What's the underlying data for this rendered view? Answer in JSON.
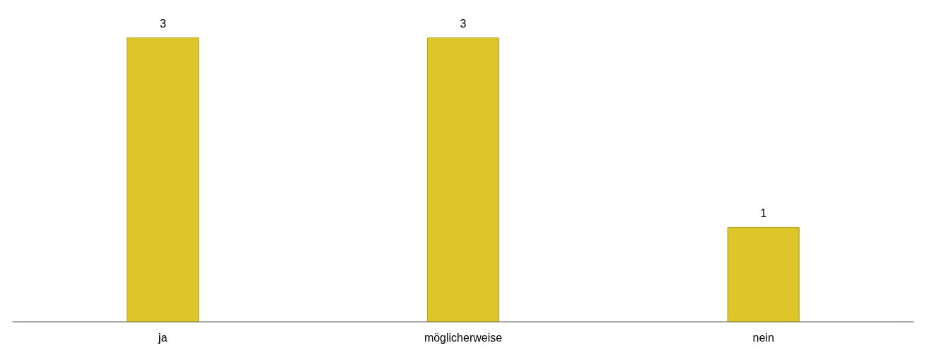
{
  "chart_data": {
    "type": "bar",
    "categories": [
      "ja",
      "möglicherweise",
      "nein"
    ],
    "values": [
      3,
      3,
      1
    ],
    "color": "#dcc62a",
    "data_labels": true
  }
}
